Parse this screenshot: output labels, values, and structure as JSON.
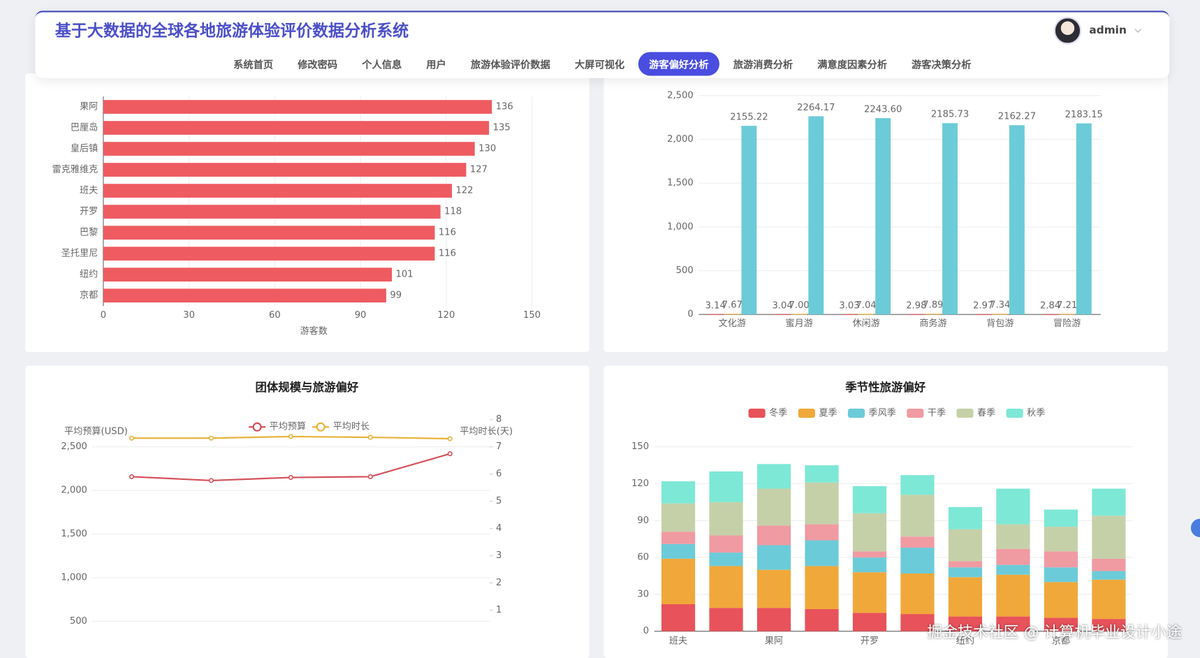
{
  "header": {
    "title": "基于大数据的全球各地旅游体验评价数据分析系统",
    "user": "admin"
  },
  "nav": {
    "items": [
      "系统首页",
      "修改密码",
      "个人信息",
      "用户",
      "旅游体验评价数据",
      "大屏可视化",
      "游客偏好分析",
      "旅游消费分析",
      "满意度因素分析",
      "游客决策分析"
    ],
    "active_index": 6
  },
  "watermark": "掘金技术社区 @ 计算机毕业设计小途",
  "chart_data": [
    {
      "type": "barh",
      "x_label": "游客数",
      "color": "#ee5b61",
      "categories": [
        "果阿",
        "巴厘岛",
        "皇后镇",
        "雷克雅维克",
        "班夫",
        "开罗",
        "巴黎",
        "圣托里尼",
        "纽约",
        "京都"
      ],
      "values": [
        136,
        135,
        130,
        127,
        122,
        118,
        116,
        116,
        101,
        99
      ],
      "xlim": [
        0,
        150
      ],
      "xticks": [
        0,
        30,
        60,
        90,
        120,
        150
      ],
      "grid": true
    },
    {
      "type": "bar",
      "categories": [
        "文化游",
        "蜜月游",
        "休闲游",
        "商务游",
        "背包游",
        "冒险游"
      ],
      "series": [
        {
          "color": "#e8525a",
          "values": [
            3.14,
            3.04,
            3.03,
            2.98,
            2.97,
            2.84
          ],
          "value_labels": [
            "3.14",
            "3.04",
            "3.03",
            "2.98",
            "2.97",
            "2.84"
          ]
        },
        {
          "color": "#f0b43a",
          "values": [
            7.67,
            7.0,
            7.04,
            7.89,
            7.34,
            7.21
          ],
          "value_labels": [
            "7.67",
            "7.00",
            "7.04",
            "7.89",
            "7.34",
            "7.21"
          ]
        },
        {
          "color": "#6ccbd8",
          "values": [
            2155.22,
            2264.17,
            2243.6,
            2185.73,
            2162.27,
            2183.15
          ],
          "value_labels": [
            "2155.22",
            "2264.17",
            "2243.60",
            "2185.73",
            "2162.27",
            "2183.15"
          ]
        }
      ],
      "ylim": [
        0,
        2500
      ],
      "yticks": [
        0,
        500,
        {
          "value": 1000,
          "label": "1,000"
        },
        {
          "value": 1500,
          "label": "1,500"
        },
        {
          "value": 2000,
          "label": "2,000"
        },
        {
          "value": 2500,
          "label": "2,500"
        }
      ],
      "grid": true
    },
    {
      "type": "line",
      "title": "团体规模与旅游偏好",
      "y_label": "平均预算(USD)",
      "y2_label": "平均时长(天)",
      "categories": [
        null,
        null,
        null,
        null,
        null
      ],
      "series": [
        {
          "name": "平均预算",
          "color": "#d4505a",
          "values": [
            2158,
            2114,
            2149,
            2158,
            2421
          ]
        },
        {
          "name": "平均时长",
          "color": "#e8b33a",
          "axis": "y2",
          "values": [
            7.32,
            7.32,
            7.38,
            7.35,
            7.3
          ]
        }
      ],
      "ylim": [
        0,
        2500
      ],
      "yticks": [
        500,
        {
          "value": 1000,
          "label": "1,000"
        },
        {
          "value": 1500,
          "label": "1,500"
        },
        {
          "value": 2000,
          "label": "2,000"
        },
        {
          "value": 2500,
          "label": "2,500"
        }
      ],
      "y2lim": [
        0,
        8
      ],
      "y2ticks": [
        1,
        2,
        3,
        4,
        5,
        6,
        7,
        8
      ],
      "grid": true
    },
    {
      "type": "stacked_bar",
      "title": "季节性旅游偏好",
      "categories": [
        "班夫",
        null,
        "果阿",
        null,
        "开罗",
        null,
        "纽约",
        null,
        "京都",
        null
      ],
      "series": [
        {
          "name": "冬季",
          "color": "#e8525a",
          "values": [
            22,
            19,
            19,
            18,
            15,
            14,
            12,
            12,
            11,
            10
          ]
        },
        {
          "name": "夏季",
          "color": "#f0a83a",
          "values": [
            37,
            34,
            31,
            35,
            33,
            33,
            32,
            34,
            29,
            32
          ]
        },
        {
          "name": "季风季",
          "color": "#6ccbd8",
          "values": [
            12,
            11,
            20,
            21,
            12,
            21,
            8,
            8,
            12,
            7
          ]
        },
        {
          "name": "干季",
          "color": "#f09aa2",
          "values": [
            10,
            14,
            16,
            13,
            5,
            9,
            5,
            13,
            13,
            10
          ]
        },
        {
          "name": "春季",
          "color": "#c5d0a8",
          "values": [
            23,
            27,
            30,
            34,
            31,
            34,
            26,
            20,
            20,
            35
          ]
        },
        {
          "name": "秋季",
          "color": "#7de8d6",
          "values": [
            18,
            25,
            20,
            14,
            22,
            16,
            18,
            29,
            14,
            22
          ]
        }
      ],
      "ylim": [
        0,
        150
      ],
      "yticks": [
        0,
        30,
        60,
        90,
        120,
        150
      ],
      "grid": true
    }
  ]
}
